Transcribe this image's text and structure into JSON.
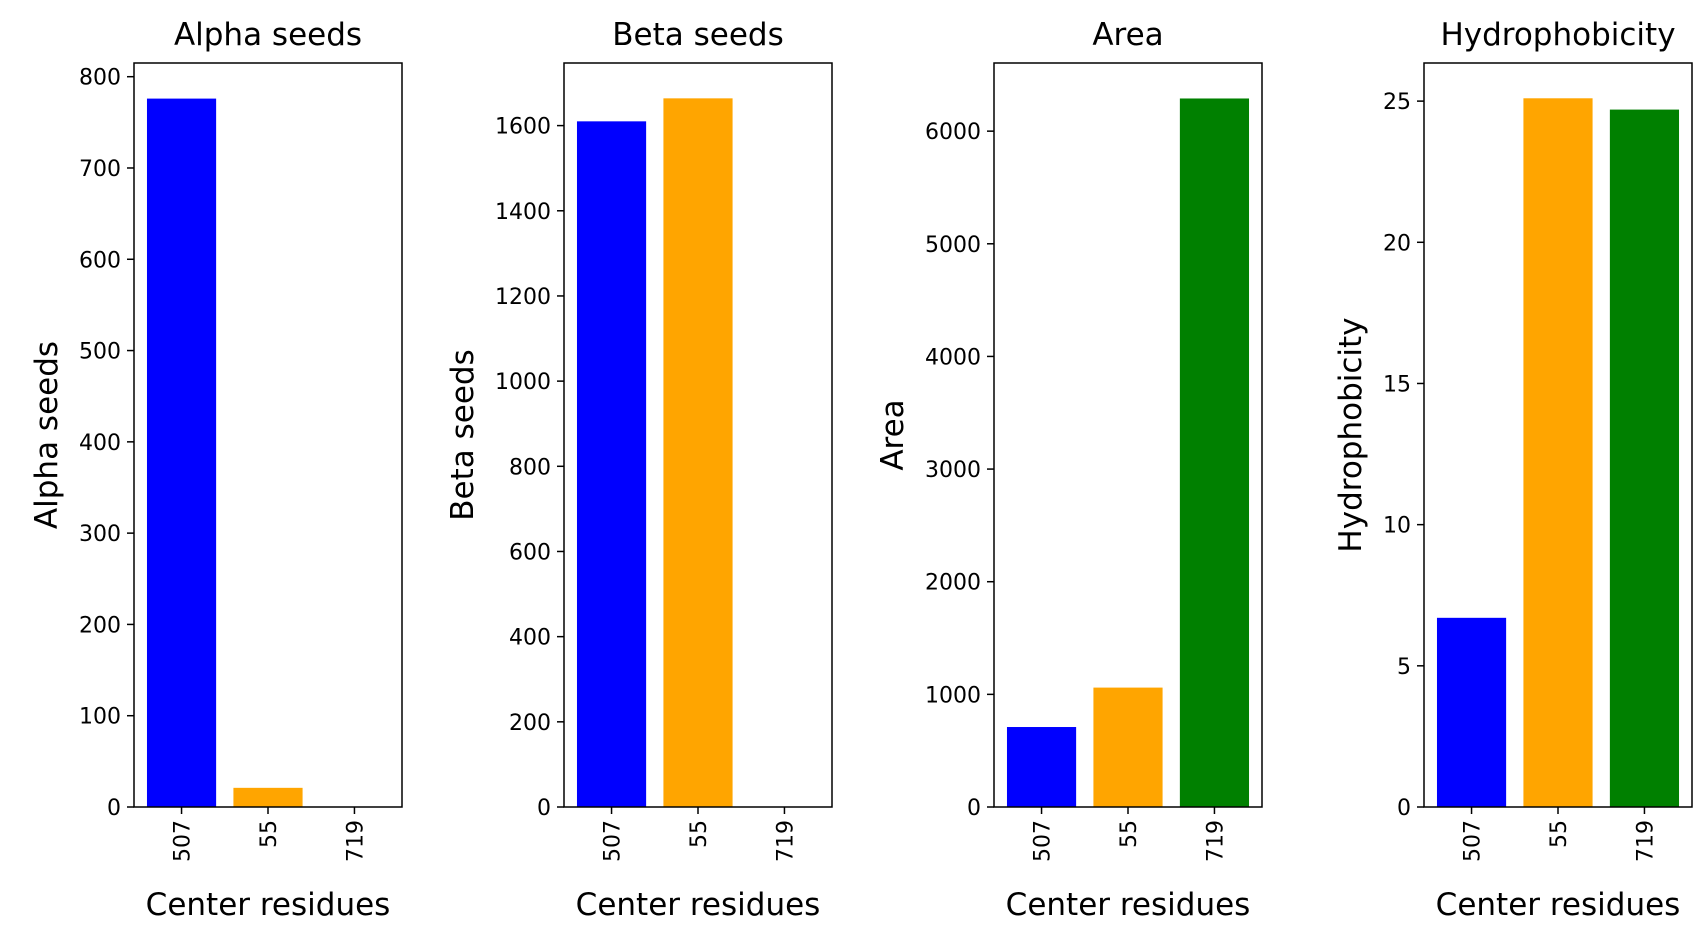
{
  "chart_data": [
    {
      "type": "bar",
      "title": "Alpha seeds",
      "xlabel": "Center residues",
      "ylabel": "Alpha seeds",
      "categories": [
        "507",
        "55",
        "719"
      ],
      "values": [
        776,
        21,
        0
      ],
      "colors": [
        "#0000ff",
        "#ffa500",
        "#008000"
      ],
      "ylim": [
        0,
        815
      ],
      "yticks": [
        0,
        100,
        200,
        300,
        400,
        500,
        600,
        700,
        800
      ],
      "ytick_labels": [
        "0",
        "100",
        "200",
        "300",
        "400",
        "500",
        "600",
        "700",
        "800"
      ],
      "grid": false
    },
    {
      "type": "bar",
      "title": "Beta seeds",
      "xlabel": "Center residues",
      "ylabel": "Beta seeds",
      "categories": [
        "507",
        "55",
        "719"
      ],
      "values": [
        1610,
        1664,
        0
      ],
      "colors": [
        "#0000ff",
        "#ffa500",
        "#008000"
      ],
      "ylim": [
        0,
        1747
      ],
      "yticks": [
        0,
        200,
        400,
        600,
        800,
        1000,
        1200,
        1400,
        1600
      ],
      "ytick_labels": [
        "0",
        "200",
        "400",
        "600",
        "800",
        "1000",
        "1200",
        "1400",
        "1600"
      ],
      "grid": false
    },
    {
      "type": "bar",
      "title": "Area",
      "xlabel": "Center residues",
      "ylabel": "Area",
      "categories": [
        "507",
        "55",
        "719"
      ],
      "values": [
        710,
        1060,
        6290
      ],
      "colors": [
        "#0000ff",
        "#ffa500",
        "#008000"
      ],
      "ylim": [
        0,
        6605
      ],
      "yticks": [
        0,
        1000,
        2000,
        3000,
        4000,
        5000,
        6000
      ],
      "ytick_labels": [
        "0",
        "1000",
        "2000",
        "3000",
        "4000",
        "5000",
        "6000"
      ],
      "grid": false
    },
    {
      "type": "bar",
      "title": "Hydrophobicity",
      "xlabel": "Center residues",
      "ylabel": "Hydrophobicity",
      "categories": [
        "507",
        "55",
        "719"
      ],
      "values": [
        6.7,
        25.1,
        24.7
      ],
      "colors": [
        "#0000ff",
        "#ffa500",
        "#008000"
      ],
      "ylim": [
        0,
        26.35
      ],
      "yticks": [
        0,
        5,
        10,
        15,
        20,
        25
      ],
      "ytick_labels": [
        "0",
        "5",
        "10",
        "15",
        "20",
        "25"
      ],
      "grid": false
    }
  ]
}
